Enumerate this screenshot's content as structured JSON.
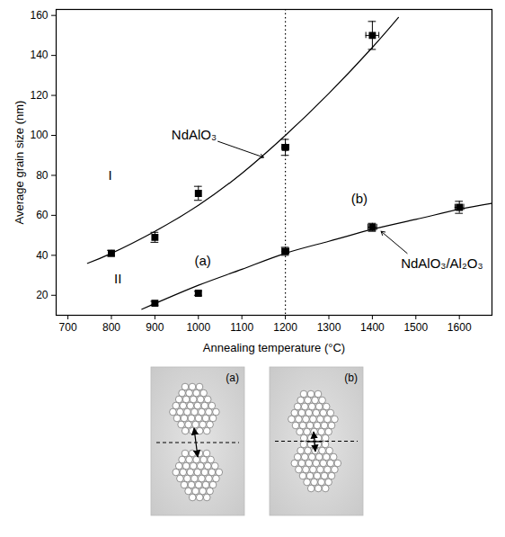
{
  "chart_data": {
    "type": "scatter",
    "x_label": "Annealing temperature (°C)",
    "y_label": "Average grain size (nm)",
    "xlim": [
      673,
      1675
    ],
    "ylim": [
      10,
      163
    ],
    "xticks": [
      700,
      800,
      900,
      1000,
      1100,
      1200,
      1300,
      1400,
      1500,
      1600
    ],
    "yticks": [
      20,
      40,
      60,
      80,
      100,
      120,
      140,
      160
    ],
    "marker": "square",
    "color": "#000000",
    "series": [
      {
        "x": [
          800,
          900,
          1000,
          1200,
          1400
        ],
        "values": [
          41,
          49,
          71,
          94,
          150
        ],
        "y_errors": [
          1.5,
          2.5,
          3.5,
          4,
          7
        ],
        "x_errors": [
          0,
          0,
          0,
          8,
          15
        ],
        "fit": {
          "x": [
            745,
            800,
            900,
            1000,
            1100,
            1200,
            1300,
            1400,
            1460
          ],
          "values": [
            36,
            41,
            52,
            65,
            81,
            100,
            121,
            144,
            159
          ],
          "line_style": "solid"
        }
      },
      {
        "x": [
          900,
          1000,
          1200,
          1400,
          1600
        ],
        "values": [
          16,
          21,
          42,
          54,
          64
        ],
        "y_errors": [
          1,
          1,
          2,
          2,
          3
        ],
        "x_errors": [
          0,
          0,
          8,
          10,
          10
        ],
        "fit": {
          "x": [
            870,
            1000,
            1100,
            1200,
            1300,
            1400,
            1500,
            1600,
            1675
          ],
          "values": [
            13,
            25,
            33,
            41,
            47,
            53,
            58,
            63,
            66
          ],
          "line_style": "solid"
        }
      }
    ],
    "vline": {
      "x": 1200,
      "line_style": "dotted"
    },
    "annotations": [
      {
        "text": "NdAlO₃",
        "x": 990,
        "y": 100,
        "arrow_from": [
          1045,
          97
        ],
        "arrow_to": [
          1150,
          89
        ]
      },
      {
        "text": "NdAlO₃/Al₂O₃",
        "x": 1560,
        "y": 36,
        "arrow_from": [
          1480,
          41
        ],
        "arrow_to": [
          1420,
          52
        ]
      },
      {
        "text": "I",
        "x": 797,
        "y": 80
      },
      {
        "text": "II",
        "x": 815,
        "y": 28
      },
      {
        "text": "(a)",
        "x": 1010,
        "y": 37
      },
      {
        "text": "(b)",
        "x": 1370,
        "y": 68
      }
    ],
    "insets": [
      {
        "label": "(a)"
      },
      {
        "label": "(b)"
      }
    ]
  }
}
